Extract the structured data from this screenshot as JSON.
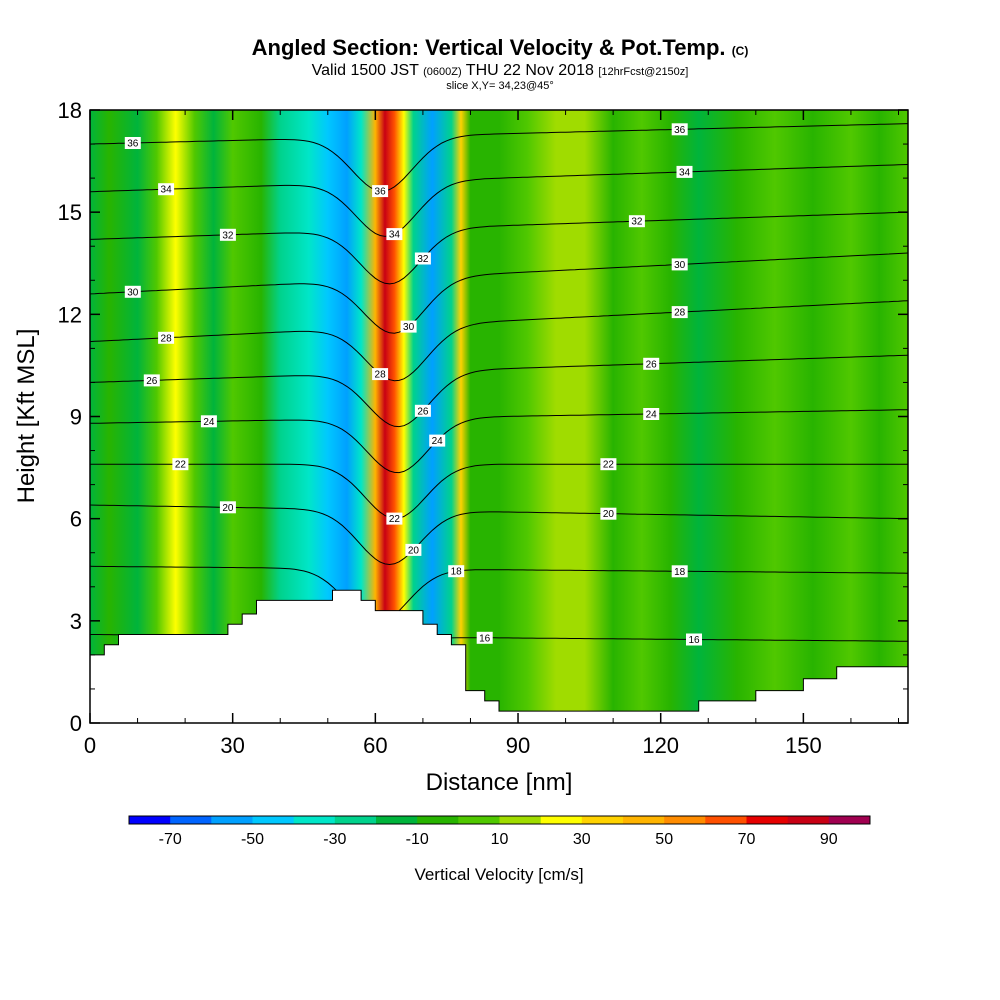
{
  "header": {
    "title": "Angled Section: Vertical Velocity & Pot.Temp.",
    "title_unit": "(C)",
    "valid_prefix": "Valid 1500 JST",
    "valid_utc": "(0600Z)",
    "valid_date": "THU 22 Nov 2018",
    "forecast": "[12hrFcst@2150z]",
    "slice": "slice X,Y= 34,23@45°"
  },
  "chart_data": {
    "type": "heatmap",
    "xlabel": "Distance [nm]",
    "ylabel": "Height [Kft MSL]",
    "xlim": [
      0,
      172
    ],
    "ylim": [
      0,
      18
    ],
    "x_ticks": [
      0,
      30,
      60,
      90,
      120,
      150
    ],
    "y_ticks": [
      0,
      3,
      6,
      9,
      12,
      15,
      18
    ],
    "colorbar": {
      "label": "Vertical Velocity [cm/s]",
      "bounds": [
        -80,
        -70,
        -60,
        -50,
        -40,
        -30,
        -20,
        -10,
        0,
        10,
        20,
        30,
        40,
        50,
        60,
        70,
        80,
        90,
        100
      ],
      "tick_labels": [
        -70,
        -50,
        -30,
        -10,
        10,
        30,
        50,
        70,
        90
      ],
      "colors": [
        "#0000ff",
        "#0064ff",
        "#00a0ff",
        "#00c8ff",
        "#00e6c8",
        "#00d28c",
        "#00b43c",
        "#28b400",
        "#50c800",
        "#a0dc00",
        "#ffff00",
        "#ffd200",
        "#ffb400",
        "#ff8c00",
        "#ff5000",
        "#e60000",
        "#c80014",
        "#a00050",
        "#640078"
      ]
    },
    "velocity_columns": [
      {
        "x": 0,
        "v": -20
      },
      {
        "x": 4,
        "v": -10
      },
      {
        "x": 10,
        "v": -20
      },
      {
        "x": 14,
        "v": 5
      },
      {
        "x": 18,
        "v": 25
      },
      {
        "x": 22,
        "v": 5
      },
      {
        "x": 26,
        "v": -15
      },
      {
        "x": 30,
        "v": 5
      },
      {
        "x": 36,
        "v": -10
      },
      {
        "x": 40,
        "v": -30
      },
      {
        "x": 46,
        "v": -40
      },
      {
        "x": 50,
        "v": -50
      },
      {
        "x": 54,
        "v": -60
      },
      {
        "x": 57,
        "v": -40
      },
      {
        "x": 60,
        "v": 40
      },
      {
        "x": 62,
        "v": 80
      },
      {
        "x": 64,
        "v": 60
      },
      {
        "x": 66,
        "v": 20
      },
      {
        "x": 68,
        "v": -30
      },
      {
        "x": 72,
        "v": -55
      },
      {
        "x": 76,
        "v": -30
      },
      {
        "x": 78,
        "v": 30
      },
      {
        "x": 80,
        "v": -5
      },
      {
        "x": 86,
        "v": -10
      },
      {
        "x": 92,
        "v": 5
      },
      {
        "x": 98,
        "v": 15
      },
      {
        "x": 104,
        "v": 10
      },
      {
        "x": 110,
        "v": -5
      },
      {
        "x": 116,
        "v": 5
      },
      {
        "x": 122,
        "v": -5
      },
      {
        "x": 128,
        "v": -15
      },
      {
        "x": 136,
        "v": -10
      },
      {
        "x": 144,
        "v": 5
      },
      {
        "x": 152,
        "v": -10
      },
      {
        "x": 160,
        "v": 5
      },
      {
        "x": 166,
        "v": -5
      },
      {
        "x": 172,
        "v": 5
      }
    ],
    "terrain": [
      {
        "x": 0,
        "h": 2.0
      },
      {
        "x": 3,
        "h": 2.0
      },
      {
        "x": 3,
        "h": 2.3
      },
      {
        "x": 6,
        "h": 2.3
      },
      {
        "x": 6,
        "h": 2.6
      },
      {
        "x": 29,
        "h": 2.6
      },
      {
        "x": 29,
        "h": 2.9
      },
      {
        "x": 32,
        "h": 2.9
      },
      {
        "x": 32,
        "h": 3.2
      },
      {
        "x": 35,
        "h": 3.2
      },
      {
        "x": 35,
        "h": 3.6
      },
      {
        "x": 51,
        "h": 3.6
      },
      {
        "x": 51,
        "h": 3.9
      },
      {
        "x": 57,
        "h": 3.9
      },
      {
        "x": 57,
        "h": 3.6
      },
      {
        "x": 60,
        "h": 3.6
      },
      {
        "x": 60,
        "h": 3.3
      },
      {
        "x": 70,
        "h": 3.3
      },
      {
        "x": 70,
        "h": 2.9
      },
      {
        "x": 73,
        "h": 2.9
      },
      {
        "x": 73,
        "h": 2.6
      },
      {
        "x": 76,
        "h": 2.6
      },
      {
        "x": 76,
        "h": 2.3
      },
      {
        "x": 79,
        "h": 2.3
      },
      {
        "x": 79,
        "h": 0.95
      },
      {
        "x": 83,
        "h": 0.95
      },
      {
        "x": 83,
        "h": 0.65
      },
      {
        "x": 86,
        "h": 0.65
      },
      {
        "x": 86,
        "h": 0.35
      },
      {
        "x": 128,
        "h": 0.35
      },
      {
        "x": 128,
        "h": 0.65
      },
      {
        "x": 140,
        "h": 0.65
      },
      {
        "x": 140,
        "h": 0.95
      },
      {
        "x": 150,
        "h": 0.95
      },
      {
        "x": 150,
        "h": 1.3
      },
      {
        "x": 157,
        "h": 1.3
      },
      {
        "x": 157,
        "h": 1.65
      },
      {
        "x": 172,
        "h": 1.65
      }
    ],
    "theta_contours": [
      {
        "value": 16,
        "left": 2.6,
        "right": 2.4,
        "labels": [
          {
            "x": 83,
            "text": "16"
          },
          {
            "x": 127,
            "text": "16"
          }
        ]
      },
      {
        "value": 18,
        "left": 4.6,
        "right": 4.4,
        "labels": [
          {
            "x": 77,
            "text": "18"
          },
          {
            "x": 124,
            "text": "18"
          }
        ]
      },
      {
        "value": 20,
        "left": 6.4,
        "right": 6.0,
        "labels": [
          {
            "x": 29,
            "text": "20"
          },
          {
            "x": 68,
            "text": "20"
          },
          {
            "x": 109,
            "text": "20"
          }
        ]
      },
      {
        "value": 22,
        "left": 7.6,
        "right": 7.6,
        "labels": [
          {
            "x": 19,
            "text": "22"
          },
          {
            "x": 64,
            "text": "22"
          },
          {
            "x": 109,
            "text": "22"
          }
        ]
      },
      {
        "value": 24,
        "left": 8.8,
        "right": 9.2,
        "labels": [
          {
            "x": 25,
            "text": "24"
          },
          {
            "x": 73,
            "text": "24"
          },
          {
            "x": 118,
            "text": "24"
          }
        ]
      },
      {
        "value": 26,
        "left": 10.0,
        "right": 10.8,
        "labels": [
          {
            "x": 13,
            "text": "26"
          },
          {
            "x": 70,
            "text": "26"
          },
          {
            "x": 118,
            "text": "26"
          }
        ]
      },
      {
        "value": 28,
        "left": 11.2,
        "right": 12.4,
        "labels": [
          {
            "x": 16,
            "text": "28"
          },
          {
            "x": 61,
            "text": "28"
          },
          {
            "x": 124,
            "text": "28"
          }
        ]
      },
      {
        "value": 30,
        "left": 12.6,
        "right": 13.8,
        "labels": [
          {
            "x": 9,
            "text": "30"
          },
          {
            "x": 67,
            "text": "30"
          },
          {
            "x": 124,
            "text": "30"
          }
        ]
      },
      {
        "value": 32,
        "left": 14.2,
        "right": 15.0,
        "labels": [
          {
            "x": 29,
            "text": "32"
          },
          {
            "x": 70,
            "text": "32"
          },
          {
            "x": 115,
            "text": "32"
          }
        ]
      },
      {
        "value": 34,
        "left": 15.6,
        "right": 16.4,
        "labels": [
          {
            "x": 16,
            "text": "34"
          },
          {
            "x": 64,
            "text": "34"
          },
          {
            "x": 125,
            "text": "34"
          }
        ]
      },
      {
        "value": 36,
        "left": 17.0,
        "right": 17.6,
        "labels": [
          {
            "x": 9,
            "text": "36"
          },
          {
            "x": 61,
            "text": "36"
          },
          {
            "x": 124,
            "text": "36"
          }
        ]
      }
    ],
    "updraft_axis": [
      {
        "h": 3.6,
        "x": 59
      },
      {
        "h": 7.0,
        "x": 64
      },
      {
        "h": 10.0,
        "x": 65
      },
      {
        "h": 13.0,
        "x": 64
      },
      {
        "h": 18.0,
        "x": 61
      }
    ],
    "grid": false,
    "legend": "bottom"
  }
}
